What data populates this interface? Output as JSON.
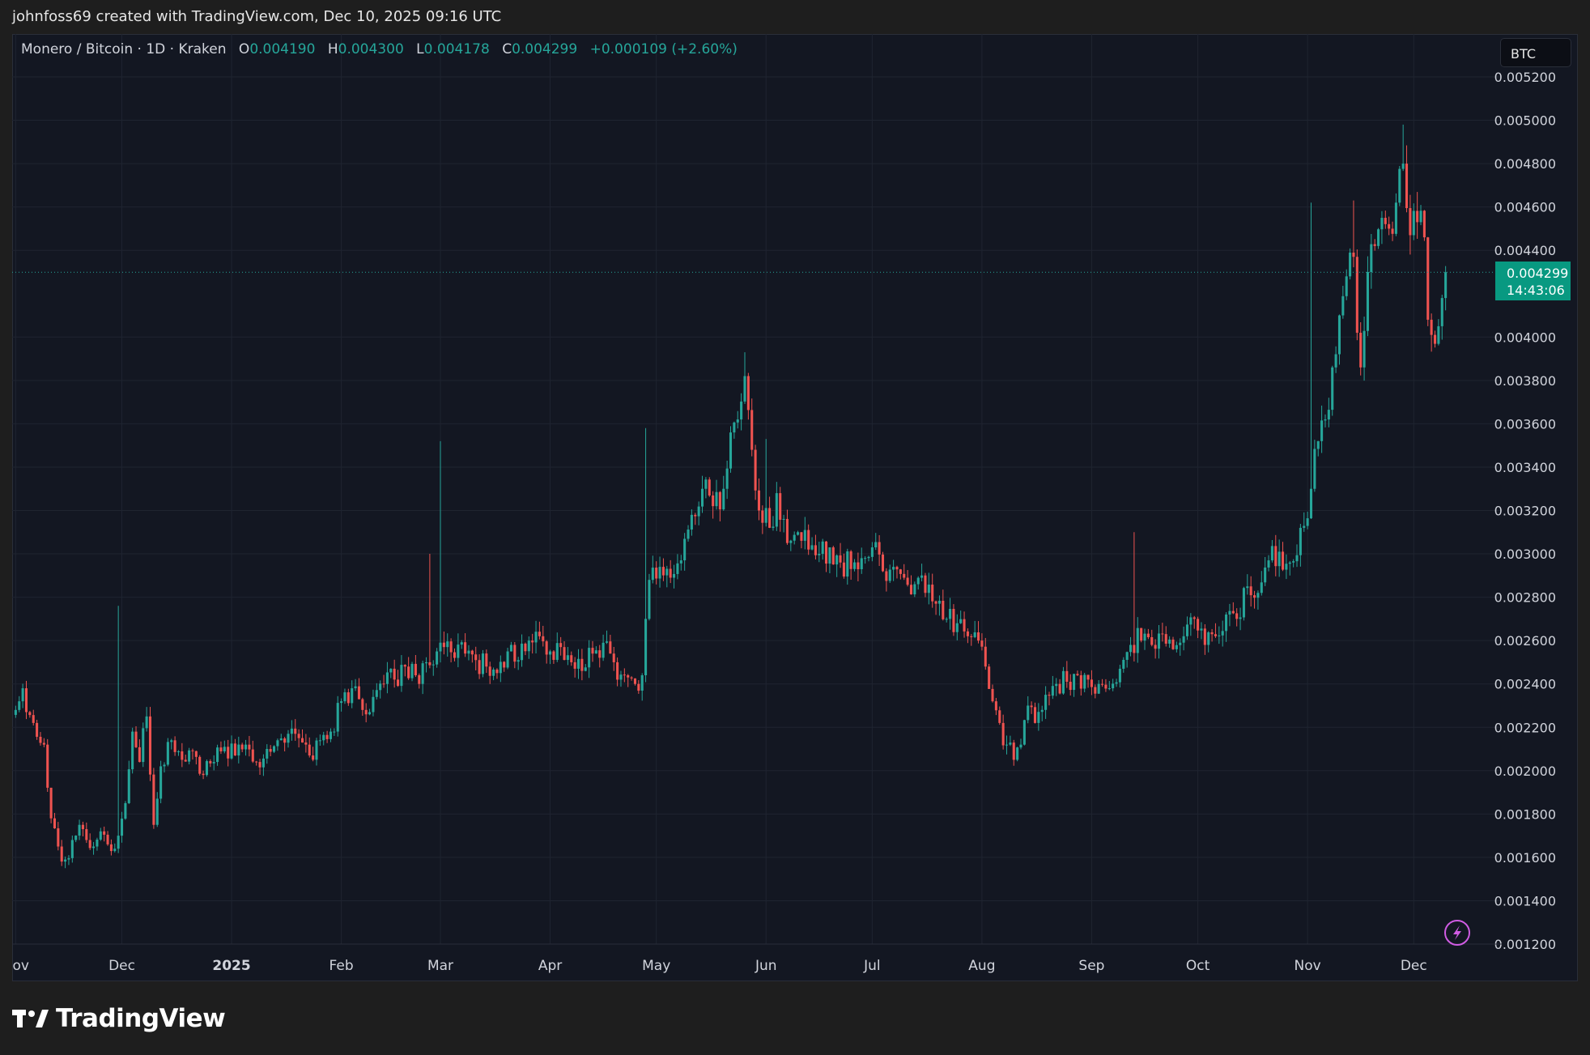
{
  "header": {
    "caption": "johnfoss69 created with TradingView.com, Dec 10, 2025 09:16 UTC"
  },
  "legend": {
    "symbol": "Monero / Bitcoin · 1D · Kraken",
    "open_label": "O",
    "open": "0.004190",
    "high_label": "H",
    "high": "0.004300",
    "low_label": "L",
    "low": "0.004178",
    "close_label": "C",
    "close": "0.004299",
    "change": "+0.000109 (+2.60%)"
  },
  "toolbar": {
    "currency": "BTC"
  },
  "last_price": {
    "price": "0.004299",
    "countdown": "14:43:06"
  },
  "brand": {
    "name": "TradingView"
  },
  "colors": {
    "up": "#26a69a",
    "down": "#ef5350",
    "background": "#131722",
    "grid": "#1f2430",
    "accent_lightning": "#d05ce3"
  },
  "chart_data": {
    "type": "candlestick",
    "title": "Monero / Bitcoin · 1D · Kraken",
    "y_axis": {
      "ticks": [
        "0.005200",
        "0.005000",
        "0.004800",
        "0.004600",
        "0.004400",
        "0.004000",
        "0.003800",
        "0.003600",
        "0.003400",
        "0.003200",
        "0.003000",
        "0.002800",
        "0.002600",
        "0.002400",
        "0.002200",
        "0.002000",
        "0.001800",
        "0.001600",
        "0.001400",
        "0.001200"
      ],
      "range": [
        0.0012,
        0.0052
      ]
    },
    "x_axis": {
      "ticks": [
        "Nov",
        "Dec",
        "2025",
        "Feb",
        "Mar",
        "Apr",
        "May",
        "Jun",
        "Jul",
        "Aug",
        "Sep",
        "Oct",
        "Nov",
        "Dec"
      ]
    },
    "last_value": 0.004299,
    "path": [
      [
        "2024-11-01",
        0.00228
      ],
      [
        "2024-11-03",
        0.00238
      ],
      [
        "2024-11-06",
        0.00222
      ],
      [
        "2024-11-09",
        0.00212
      ],
      [
        "2024-11-11",
        0.00178
      ],
      [
        "2024-11-13",
        0.00165
      ],
      [
        "2024-11-15",
        0.00159
      ],
      [
        "2024-11-17",
        0.00168
      ],
      [
        "2024-11-19",
        0.00175
      ],
      [
        "2024-11-21",
        0.00168
      ],
      [
        "2024-11-23",
        0.00165
      ],
      [
        "2024-11-25",
        0.00172
      ],
      [
        "2024-11-27",
        0.00166
      ],
      [
        "2024-11-29",
        0.00164
      ],
      [
        "2024-11-30",
        0.0017
      ],
      [
        "2024-12-02",
        0.00185
      ],
      [
        "2024-12-04",
        0.00218
      ],
      [
        "2024-12-06",
        0.00204
      ],
      [
        "2024-12-08",
        0.00225
      ],
      [
        "2024-12-10",
        0.00175
      ],
      [
        "2024-12-12",
        0.00202
      ],
      [
        "2024-12-15",
        0.00214
      ],
      [
        "2024-12-18",
        0.00205
      ],
      [
        "2024-12-21",
        0.00209
      ],
      [
        "2024-12-24",
        0.00198
      ],
      [
        "2024-12-27",
        0.00204
      ],
      [
        "2024-12-30",
        0.00211
      ],
      [
        "2025-01-02",
        0.00207
      ],
      [
        "2025-01-05",
        0.00212
      ],
      [
        "2025-01-08",
        0.00204
      ],
      [
        "2025-01-11",
        0.0021
      ],
      [
        "2025-01-14",
        0.00214
      ],
      [
        "2025-01-17",
        0.00217
      ],
      [
        "2025-01-20",
        0.00215
      ],
      [
        "2025-01-23",
        0.00207
      ],
      [
        "2025-01-26",
        0.00214
      ],
      [
        "2025-01-29",
        0.00218
      ],
      [
        "2025-02-01",
        0.00232
      ],
      [
        "2025-02-04",
        0.00238
      ],
      [
        "2025-02-07",
        0.00228
      ],
      [
        "2025-02-10",
        0.00234
      ],
      [
        "2025-02-13",
        0.0024
      ],
      [
        "2025-02-16",
        0.00242
      ],
      [
        "2025-02-19",
        0.00248
      ],
      [
        "2025-02-22",
        0.00244
      ],
      [
        "2025-02-25",
        0.0025
      ],
      [
        "2025-02-28",
        0.00255
      ],
      [
        "2025-03-02",
        0.00257
      ],
      [
        "2025-03-05",
        0.00252
      ],
      [
        "2025-03-08",
        0.00254
      ],
      [
        "2025-03-11",
        0.00251
      ],
      [
        "2025-03-14",
        0.00248
      ],
      [
        "2025-03-17",
        0.00245
      ],
      [
        "2025-03-20",
        0.00255
      ],
      [
        "2025-03-23",
        0.00251
      ],
      [
        "2025-03-26",
        0.0026
      ],
      [
        "2025-03-29",
        0.00262
      ],
      [
        "2025-04-01",
        0.00255
      ],
      [
        "2025-04-04",
        0.00257
      ],
      [
        "2025-04-07",
        0.0025
      ],
      [
        "2025-04-10",
        0.00246
      ],
      [
        "2025-04-13",
        0.00254
      ],
      [
        "2025-04-16",
        0.00259
      ],
      [
        "2025-04-19",
        0.0025
      ],
      [
        "2025-04-22",
        0.00244
      ],
      [
        "2025-04-25",
        0.0024
      ],
      [
        "2025-04-27",
        0.00244
      ],
      [
        "2025-04-28",
        0.0027
      ],
      [
        "2025-04-29",
        0.00288
      ],
      [
        "2025-05-02",
        0.00294
      ],
      [
        "2025-05-05",
        0.00289
      ],
      [
        "2025-05-08",
        0.00297
      ],
      [
        "2025-05-11",
        0.00318
      ],
      [
        "2025-05-14",
        0.0033
      ],
      [
        "2025-05-17",
        0.00322
      ],
      [
        "2025-05-20",
        0.0033
      ],
      [
        "2025-05-22",
        0.00356
      ],
      [
        "2025-05-24",
        0.00362
      ],
      [
        "2025-05-26",
        0.00382
      ],
      [
        "2025-05-28",
        0.00348
      ],
      [
        "2025-05-30",
        0.0032
      ],
      [
        "2025-06-02",
        0.00312
      ],
      [
        "2025-06-04",
        0.00328
      ],
      [
        "2025-06-07",
        0.00305
      ],
      [
        "2025-06-10",
        0.0031
      ],
      [
        "2025-06-13",
        0.00302
      ],
      [
        "2025-06-16",
        0.003
      ],
      [
        "2025-06-19",
        0.00303
      ],
      [
        "2025-06-22",
        0.00296
      ],
      [
        "2025-06-25",
        0.00293
      ],
      [
        "2025-06-28",
        0.00298
      ],
      [
        "2025-07-01",
        0.00303
      ],
      [
        "2025-07-04",
        0.00292
      ],
      [
        "2025-07-07",
        0.00294
      ],
      [
        "2025-07-10",
        0.00289
      ],
      [
        "2025-07-13",
        0.00286
      ],
      [
        "2025-07-16",
        0.00282
      ],
      [
        "2025-07-19",
        0.00277
      ],
      [
        "2025-07-22",
        0.0027
      ],
      [
        "2025-07-25",
        0.00268
      ],
      [
        "2025-07-28",
        0.00262
      ],
      [
        "2025-07-31",
        0.0026
      ],
      [
        "2025-08-02",
        0.00248
      ],
      [
        "2025-08-04",
        0.00232
      ],
      [
        "2025-08-06",
        0.00222
      ],
      [
        "2025-08-08",
        0.00212
      ],
      [
        "2025-08-10",
        0.00205
      ],
      [
        "2025-08-12",
        0.00212
      ],
      [
        "2025-08-14",
        0.0023
      ],
      [
        "2025-08-16",
        0.00222
      ],
      [
        "2025-08-19",
        0.00235
      ],
      [
        "2025-08-22",
        0.0024
      ],
      [
        "2025-08-25",
        0.00241
      ],
      [
        "2025-08-28",
        0.00244
      ],
      [
        "2025-08-31",
        0.00242
      ],
      [
        "2025-09-03",
        0.0024
      ],
      [
        "2025-09-06",
        0.00238
      ],
      [
        "2025-09-09",
        0.00247
      ],
      [
        "2025-09-12",
        0.00258
      ],
      [
        "2025-09-15",
        0.0026
      ],
      [
        "2025-09-18",
        0.00258
      ],
      [
        "2025-09-21",
        0.00263
      ],
      [
        "2025-09-24",
        0.00256
      ],
      [
        "2025-09-27",
        0.00262
      ],
      [
        "2025-09-30",
        0.0027
      ],
      [
        "2025-10-03",
        0.00258
      ],
      [
        "2025-10-06",
        0.00262
      ],
      [
        "2025-10-09",
        0.00272
      ],
      [
        "2025-10-12",
        0.0027
      ],
      [
        "2025-10-15",
        0.00285
      ],
      [
        "2025-10-18",
        0.00282
      ],
      [
        "2025-10-21",
        0.00297
      ],
      [
        "2025-10-24",
        0.00301
      ],
      [
        "2025-10-27",
        0.00296
      ],
      [
        "2025-10-30",
        0.00312
      ],
      [
        "2025-11-02",
        0.0033
      ],
      [
        "2025-11-04",
        0.00352
      ],
      [
        "2025-11-06",
        0.00362
      ],
      [
        "2025-11-08",
        0.00386
      ],
      [
        "2025-11-10",
        0.0041
      ],
      [
        "2025-11-12",
        0.00428
      ],
      [
        "2025-11-14",
        0.00437
      ],
      [
        "2025-11-15",
        0.00402
      ],
      [
        "2025-11-16",
        0.00386
      ],
      [
        "2025-11-18",
        0.0043
      ],
      [
        "2025-11-20",
        0.00442
      ],
      [
        "2025-11-22",
        0.00455
      ],
      [
        "2025-11-24",
        0.0045
      ],
      [
        "2025-11-26",
        0.00462
      ],
      [
        "2025-11-28",
        0.0048
      ],
      [
        "2025-11-30",
        0.00447
      ],
      [
        "2025-12-02",
        0.00453
      ],
      [
        "2025-12-04",
        0.00446
      ],
      [
        "2025-12-05",
        0.00408
      ],
      [
        "2025-12-06",
        0.00401
      ],
      [
        "2025-12-08",
        0.00405
      ],
      [
        "2025-12-09",
        0.00418
      ],
      [
        "2025-12-10",
        0.004299
      ]
    ],
    "notable_wicks": [
      [
        "2024-11-30",
        0.00276
      ],
      [
        "2025-02-26",
        0.003
      ],
      [
        "2025-03-01",
        0.00352
      ],
      [
        "2025-04-28",
        0.00358
      ],
      [
        "2025-05-26",
        0.00393
      ],
      [
        "2025-06-01",
        0.00353
      ],
      [
        "2025-09-13",
        0.0031
      ],
      [
        "2025-11-02",
        0.00462
      ],
      [
        "2025-11-14",
        0.00463
      ],
      [
        "2025-11-28",
        0.00498
      ]
    ]
  }
}
